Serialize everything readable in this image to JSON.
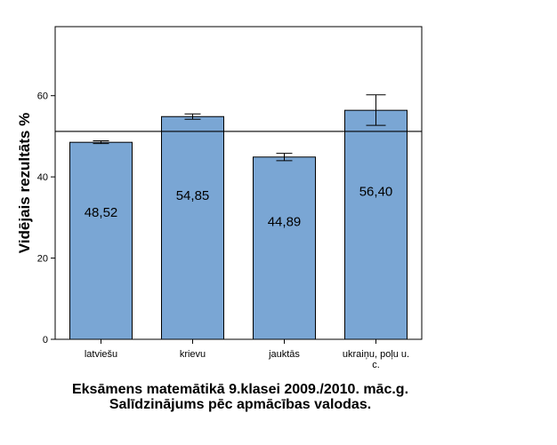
{
  "chart_data": {
    "type": "bar",
    "title": "Eksāmens matemātikā 9.klasei 2009./2010. māc.g. Salīdzinājums pēc apmācības valodas.",
    "ylabel": "Vidējais rezultāts %",
    "xlabel": "",
    "categories": [
      [
        "latviešu"
      ],
      [
        "krievu"
      ],
      [
        "jauktās"
      ],
      [
        "ukraiņu, poļu u.",
        "c."
      ]
    ],
    "values": [
      48.52,
      54.85,
      44.89,
      56.4
    ],
    "value_labels": [
      "48,52",
      "54,85",
      "44,89",
      "56,40"
    ],
    "error_bars": [
      [
        48.2,
        48.9
      ],
      [
        54.2,
        55.5
      ],
      [
        44.0,
        45.8
      ],
      [
        52.7,
        60.2
      ]
    ],
    "reference_line": 51.2,
    "ylim": [
      0,
      77
    ],
    "yticks": [
      0,
      20,
      40,
      60
    ],
    "grid": false,
    "bar_color": "#7aa6d4",
    "bar_stroke": "#000000"
  }
}
